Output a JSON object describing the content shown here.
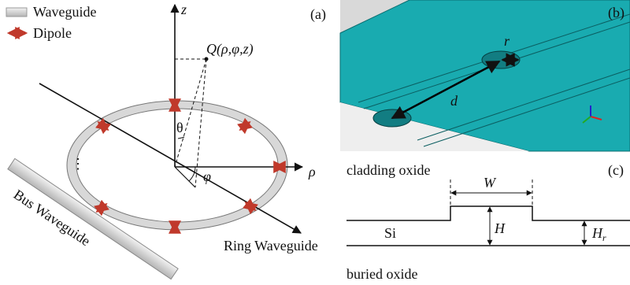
{
  "legend": {
    "waveguide": "Waveguide",
    "dipole": "Dipole"
  },
  "panel_a": {
    "label": "(a)",
    "z_axis": "z",
    "point": "Q(ρ,φ,z)",
    "theta": "θ",
    "phi": "φ",
    "rho_axis": "ρ",
    "ring": "Ring Waveguide",
    "bus": "Bus Waveguide"
  },
  "panel_b": {
    "label": "(b)",
    "radius": "r",
    "distance": "d"
  },
  "panel_c": {
    "label": "(c)",
    "top_material": "cladding oxide",
    "width": "W",
    "core": "Si",
    "height": "H",
    "rib_height": {
      "main": "H",
      "sub": "r"
    },
    "bottom_material": "buried oxide"
  }
}
